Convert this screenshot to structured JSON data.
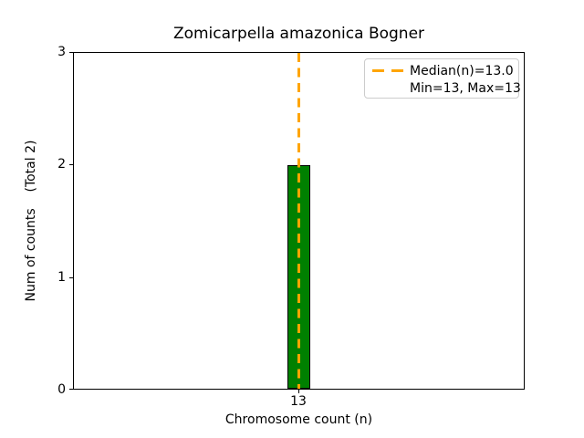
{
  "figure": {
    "title": "Zomicarpella amazonica Bogner",
    "xlabel": "Chromosome count (n)",
    "ylabel": "Num of counts    (Total 2)",
    "background": "#ffffff"
  },
  "axes": {
    "y_ticks": [
      "3",
      "2",
      "1",
      "0"
    ],
    "x_ticks": [
      "13"
    ],
    "grid": false
  },
  "legend": {
    "position": "upper right",
    "entries": [
      {
        "label": "Median(n)=13.0",
        "marker": "dashed-line-sample",
        "color": "#FFA500"
      },
      {
        "label": "Min=13, Max=13",
        "marker": "none",
        "color": null
      }
    ]
  },
  "chart_data": {
    "type": "bar",
    "categories": [
      13
    ],
    "values": [
      2
    ],
    "series": [
      {
        "name": "chromosome counts",
        "values": [
          2
        ]
      }
    ],
    "title": "Zomicarpella amazonica Bogner",
    "xlabel": "Chromosome count (n)",
    "ylabel": "Num of counts    (Total 2)",
    "ylim": [
      0,
      3
    ],
    "y_tick_values": [
      0,
      1,
      2,
      3
    ],
    "total_counts": 2,
    "bar_color": "#008000",
    "bar_edge_color": "#000000",
    "median_line": {
      "x": 13.0,
      "color": "#FFA500",
      "style": "dashed"
    },
    "stats": {
      "median": 13.0,
      "min": 13,
      "max": 13
    },
    "legend_labels": [
      "Median(n)=13.0",
      "Min=13, Max=13"
    ],
    "grid": false,
    "legend_position": "upper right"
  }
}
